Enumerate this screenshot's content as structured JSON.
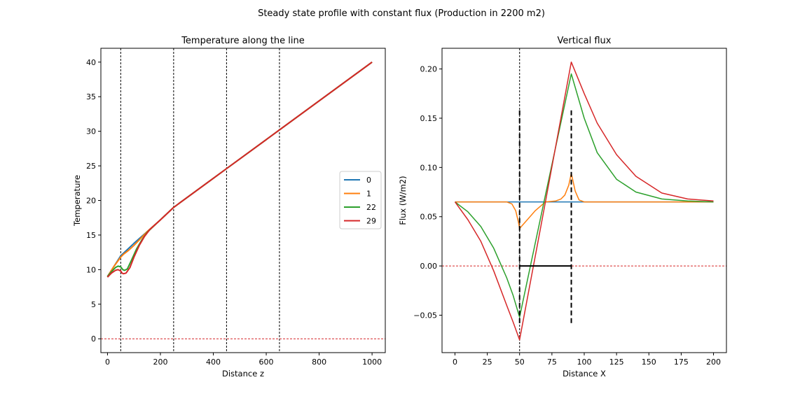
{
  "figure": {
    "suptitle": "Steady state profile with constant flux (Production in 2200 m2)"
  },
  "chart_data": [
    {
      "type": "line",
      "title": "Temperature along the line",
      "xlabel": "Distance z",
      "ylabel": "Temperature",
      "xlim": [
        -25,
        1050
      ],
      "ylim": [
        -2,
        42
      ],
      "xticks": [
        0,
        200,
        400,
        600,
        800,
        1000
      ],
      "yticks": [
        0,
        5,
        10,
        15,
        20,
        25,
        30,
        35,
        40
      ],
      "grid": false,
      "legend": {
        "placement": "center-right",
        "entries": [
          "0",
          "1",
          "22",
          "29"
        ]
      },
      "vlines": [
        50,
        250,
        450,
        650
      ],
      "hlines": [
        0
      ],
      "series": [
        {
          "name": "0",
          "color": "#1f77b4",
          "x": [
            0,
            25,
            50,
            100,
            150,
            200,
            250,
            450,
            650,
            1000
          ],
          "y": [
            9.0,
            10.5,
            12.0,
            13.8,
            15.5,
            17.2,
            19.0,
            24.6,
            30.2,
            40.0
          ]
        },
        {
          "name": "1",
          "color": "#ff7f0e",
          "x": [
            0,
            25,
            50,
            60,
            80,
            100,
            120,
            150,
            200,
            250,
            450,
            650,
            1000
          ],
          "y": [
            9.0,
            10.5,
            11.8,
            12.2,
            12.8,
            13.5,
            14.3,
            15.5,
            17.2,
            19.0,
            24.6,
            30.2,
            40.0
          ]
        },
        {
          "name": "22",
          "color": "#2ca02c",
          "x": [
            0,
            15,
            30,
            40,
            50,
            58,
            65,
            75,
            90,
            110,
            130,
            150,
            200,
            250,
            450,
            650,
            1000
          ],
          "y": [
            9.0,
            9.7,
            10.3,
            10.5,
            10.4,
            10.0,
            9.9,
            10.1,
            11.3,
            13.0,
            14.3,
            15.4,
            17.2,
            19.0,
            24.6,
            30.2,
            40.0
          ]
        },
        {
          "name": "29",
          "color": "#d62728",
          "x": [
            0,
            15,
            30,
            40,
            50,
            55,
            60,
            70,
            85,
            100,
            120,
            140,
            160,
            200,
            250,
            450,
            650,
            1000
          ],
          "y": [
            8.9,
            9.5,
            9.9,
            10.0,
            9.8,
            9.5,
            9.4,
            9.5,
            10.3,
            11.8,
            13.5,
            14.8,
            15.8,
            17.2,
            19.0,
            24.6,
            30.2,
            40.0
          ]
        }
      ]
    },
    {
      "type": "line",
      "title": "Vertical flux",
      "xlabel": "Distance X",
      "ylabel": "Flux (W/m2)",
      "xlim": [
        -10,
        210
      ],
      "ylim": [
        -0.088,
        0.221
      ],
      "xticks": [
        0,
        25,
        50,
        75,
        100,
        125,
        150,
        175,
        200
      ],
      "yticks": [
        -0.05,
        0.0,
        0.05,
        0.1,
        0.15,
        0.2
      ],
      "ytick_labels": [
        "−0.05",
        "0.00",
        "0.05",
        "0.10",
        "0.15",
        "0.20"
      ],
      "grid": false,
      "vlines": [
        50
      ],
      "hlines": [
        0
      ],
      "black_segments": [
        {
          "x": [
            50,
            50
          ],
          "y": [
            -0.058,
            0.158
          ],
          "dashed": true
        },
        {
          "x": [
            90,
            90
          ],
          "y": [
            -0.058,
            0.158
          ],
          "dashed": true
        },
        {
          "x": [
            50,
            90
          ],
          "y": [
            0.0,
            0.0
          ],
          "dashed": false
        }
      ],
      "series": [
        {
          "name": "0",
          "color": "#1f77b4",
          "x": [
            0,
            50,
            200
          ],
          "y": [
            0.065,
            0.065,
            0.065
          ]
        },
        {
          "name": "1",
          "color": "#ff7f0e",
          "x": [
            0,
            40,
            44,
            47,
            49,
            50,
            62,
            70,
            78,
            82,
            85,
            88,
            89.5,
            90,
            91,
            93,
            96,
            100,
            200
          ],
          "y": [
            0.065,
            0.065,
            0.063,
            0.056,
            0.045,
            0.038,
            0.056,
            0.065,
            0.066,
            0.068,
            0.072,
            0.082,
            0.091,
            0.094,
            0.088,
            0.076,
            0.067,
            0.065,
            0.065
          ]
        },
        {
          "name": "22",
          "color": "#2ca02c",
          "x": [
            0,
            10,
            20,
            30,
            40,
            45,
            50,
            70,
            90,
            100,
            110,
            125,
            140,
            160,
            180,
            200
          ],
          "y": [
            0.065,
            0.055,
            0.04,
            0.018,
            -0.012,
            -0.03,
            -0.052,
            0.072,
            0.195,
            0.15,
            0.115,
            0.088,
            0.075,
            0.068,
            0.066,
            0.065
          ]
        },
        {
          "name": "29",
          "color": "#d62728",
          "x": [
            0,
            10,
            20,
            30,
            40,
            45,
            50,
            70,
            90,
            100,
            110,
            125,
            140,
            160,
            180,
            200
          ],
          "y": [
            0.065,
            0.047,
            0.025,
            -0.005,
            -0.04,
            -0.057,
            -0.075,
            0.065,
            0.207,
            0.175,
            0.145,
            0.113,
            0.091,
            0.074,
            0.068,
            0.066
          ]
        }
      ]
    }
  ]
}
